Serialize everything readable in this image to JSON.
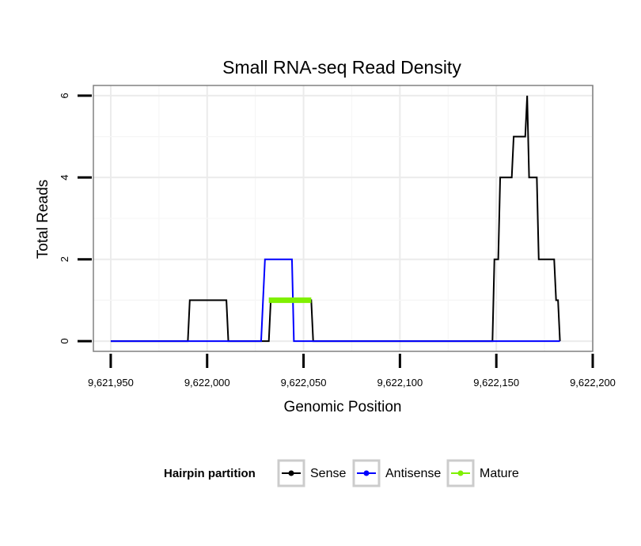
{
  "chart_data": {
    "type": "line",
    "title": "Small RNA-seq Read Density",
    "xlabel": "Genomic Position",
    "ylabel": "Total Reads",
    "xlim": [
      9621941,
      9622200
    ],
    "ylim": [
      -0.25,
      6.25
    ],
    "x_ticks": [
      9621950,
      9622000,
      9622050,
      9622100,
      9622150,
      9622200
    ],
    "x_tick_labels": [
      "9,621,950",
      "9,622,000",
      "9,622,050",
      "9,622,100",
      "9,622,150",
      "9,622,200"
    ],
    "y_ticks": [
      0,
      2,
      4,
      6
    ],
    "y_tick_labels": [
      "0",
      "2",
      "4",
      "6"
    ],
    "grid": true,
    "legend": {
      "title": "Hairpin partition",
      "position": "bottom",
      "items": [
        {
          "label": "Sense",
          "color": "#000000"
        },
        {
          "label": "Antisense",
          "color": "#0000ff"
        },
        {
          "label": "Mature",
          "color": "#7ff000"
        }
      ]
    },
    "series": [
      {
        "name": "Sense",
        "color": "#000000",
        "points": [
          [
            9621950,
            0
          ],
          [
            9621990,
            0
          ],
          [
            9621991,
            1
          ],
          [
            9622010,
            1
          ],
          [
            9622011,
            0
          ],
          [
            9622032,
            0
          ],
          [
            9622033,
            1
          ],
          [
            9622054,
            1
          ],
          [
            9622055,
            0
          ],
          [
            9622148,
            0
          ],
          [
            9622149,
            2
          ],
          [
            9622151,
            2
          ],
          [
            9622152,
            4
          ],
          [
            9622158,
            4
          ],
          [
            9622159,
            5
          ],
          [
            9622165,
            5
          ],
          [
            9622166,
            6
          ],
          [
            9622167,
            4
          ],
          [
            9622171,
            4
          ],
          [
            9622172,
            2
          ],
          [
            9622180,
            2
          ],
          [
            9622181,
            1
          ],
          [
            9622182,
            1
          ],
          [
            9622183,
            0
          ]
        ]
      },
      {
        "name": "Antisense",
        "color": "#0000ff",
        "points": [
          [
            9621950,
            0
          ],
          [
            9622028,
            0
          ],
          [
            9622030,
            2
          ],
          [
            9622044,
            2
          ],
          [
            9622045,
            0
          ],
          [
            9622183,
            0
          ]
        ]
      },
      {
        "name": "Mature",
        "color": "#7ff000",
        "points": [
          [
            9622032,
            1
          ],
          [
            9622054,
            1
          ]
        ]
      }
    ]
  }
}
